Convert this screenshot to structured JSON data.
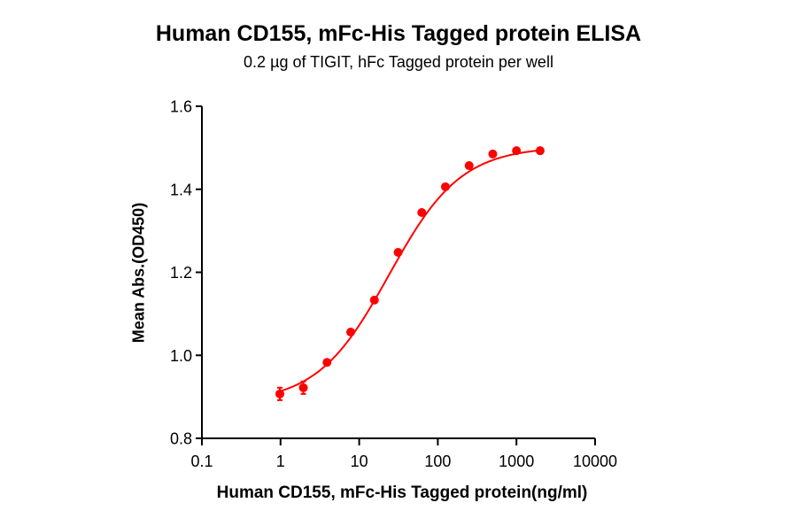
{
  "chart_data": {
    "type": "scatter",
    "title": "Human CD155, mFc-His Tagged protein ELISA",
    "subtitle": "0.2 µg of TIGIT, hFc Tagged protein per well",
    "xlabel": "Human CD155, mFc-His Tagged protein(ng/ml)",
    "ylabel": "Mean Abs.(OD450)",
    "xscale": "log",
    "xlim": [
      0.1,
      10000
    ],
    "ylim": [
      0.8,
      1.6
    ],
    "x_ticks": [
      "0.1",
      "1",
      "10",
      "100",
      "1000",
      "10000"
    ],
    "y_ticks": [
      "0.8",
      "1.0",
      "1.2",
      "1.4",
      "1.6"
    ],
    "grid": false,
    "legend": null,
    "series": [
      {
        "name": "Human CD155, mFc-His Tagged protein",
        "color": "#ff0000",
        "fit": "4PL sigmoidal curve",
        "x": [
          0.98,
          1.95,
          3.9,
          7.8,
          15.6,
          31.25,
          62.5,
          125,
          250,
          500,
          1000,
          2000
        ],
        "y": [
          0.907,
          0.922,
          0.983,
          1.056,
          1.133,
          1.248,
          1.344,
          1.406,
          1.457,
          1.485,
          1.493,
          1.493
        ],
        "error": [
          0.015,
          0.015,
          0.005,
          0.005,
          0.005,
          0.005,
          0.005,
          0.005,
          0.005,
          0.005,
          0.005,
          0.005
        ]
      }
    ]
  }
}
